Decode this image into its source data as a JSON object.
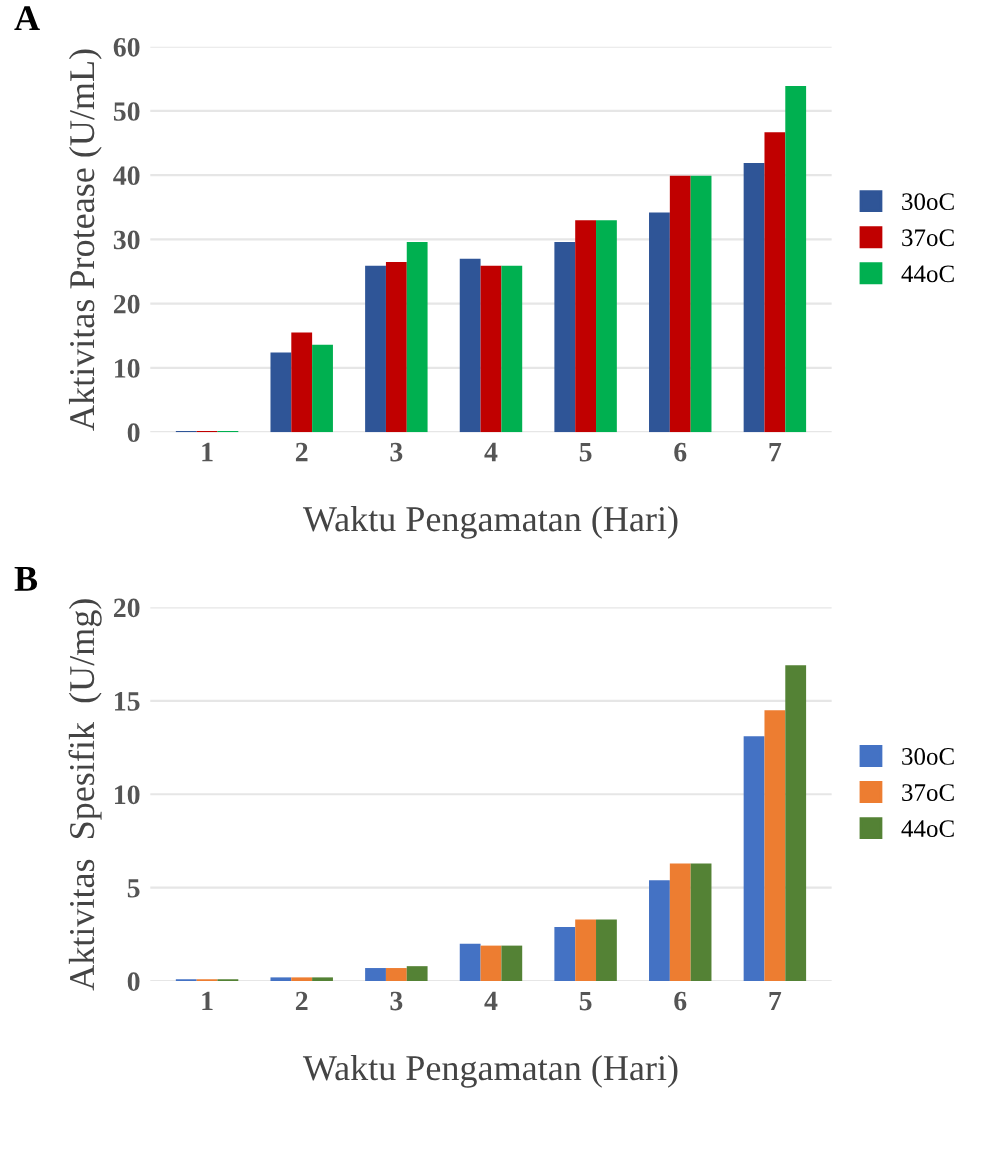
{
  "chart_data": [
    {
      "type": "bar",
      "title": "A",
      "xlabel": "Waktu Pengamatan (Hari)",
      "ylabel": "Aktivitas Protease (U/mL)",
      "categories": [
        "1",
        "2",
        "3",
        "4",
        "5",
        "6",
        "7"
      ],
      "series": [
        {
          "name": "30oC",
          "color": "#2f5597",
          "values": [
            0.2,
            12.4,
            25.9,
            27,
            29.6,
            34.2,
            41.9
          ]
        },
        {
          "name": "37oC",
          "color": "#c00000",
          "values": [
            0.2,
            15.5,
            26.5,
            25.9,
            33,
            39.9,
            46.7
          ]
        },
        {
          "name": "44oC",
          "color": "#00b050",
          "values": [
            0.2,
            13.6,
            29.6,
            25.9,
            33,
            39.9,
            53.9
          ]
        }
      ],
      "ylim": [
        0,
        60
      ],
      "yticks": [
        0,
        10,
        20,
        30,
        40,
        50,
        60
      ],
      "grid": "y",
      "legend": "right"
    },
    {
      "type": "bar",
      "title": "B",
      "xlabel": "Waktu Pengamatan (Hari)",
      "ylabel": "Aktivitas  Spesifik  (U/mg)",
      "categories": [
        "1",
        "2",
        "3",
        "4",
        "5",
        "6",
        "7"
      ],
      "series": [
        {
          "name": "30oC",
          "color": "#4472c4",
          "values": [
            0.1,
            0.2,
            0.7,
            2.0,
            2.9,
            5.4,
            13.1
          ]
        },
        {
          "name": "37oC",
          "color": "#ed7d31",
          "values": [
            0.1,
            0.2,
            0.7,
            1.9,
            3.3,
            6.3,
            14.5
          ]
        },
        {
          "name": "44oC",
          "color": "#548235",
          "values": [
            0.1,
            0.2,
            0.8,
            1.9,
            3.3,
            6.3,
            16.9
          ]
        }
      ],
      "ylim": [
        0,
        20
      ],
      "yticks": [
        0,
        5,
        10,
        15,
        20
      ],
      "grid": "y",
      "legend": "right"
    }
  ]
}
